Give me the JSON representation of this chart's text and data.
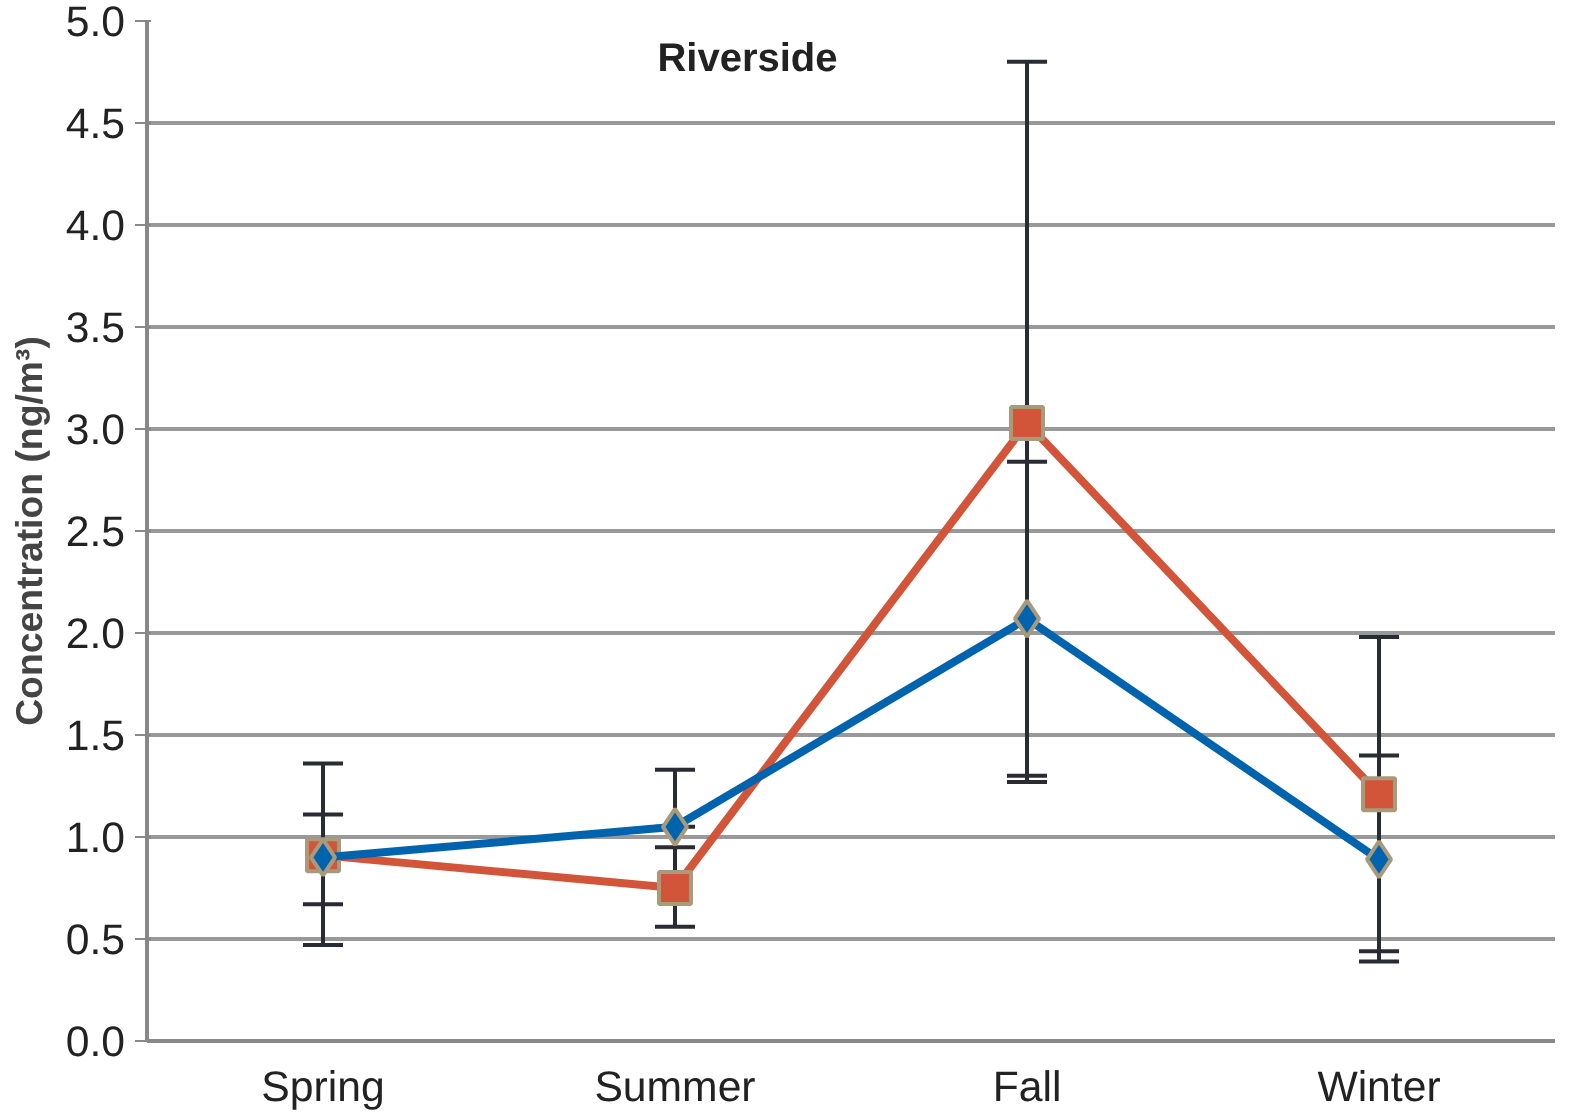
{
  "chart_data": {
    "type": "line",
    "title": "Riverside",
    "ylabel": "Concentration (ng/m³)",
    "categories": [
      "Spring",
      "Summer",
      "Fall",
      "Winter"
    ],
    "series": [
      {
        "color": "#d2553a",
        "marker": "square",
        "values": [
          0.91,
          0.75,
          3.03,
          1.21
        ],
        "errors": [
          [
            0.47,
            1.36
          ],
          [
            0.56,
            0.95
          ],
          [
            1.27,
            4.8
          ],
          [
            0.44,
            1.98
          ]
        ]
      },
      {
        "color": "#0063ad",
        "marker": "diamond",
        "values": [
          0.9,
          1.05,
          2.07,
          0.89
        ],
        "errors": [
          [
            0.67,
            1.11
          ],
          [
            1.05,
            1.33
          ],
          [
            1.3,
            2.84
          ],
          [
            0.39,
            1.4
          ]
        ]
      }
    ],
    "ylim": [
      0,
      5
    ],
    "yticks": [
      {
        "value": 0,
        "label": "0.0"
      },
      {
        "value": 0.5,
        "label": "0.5"
      },
      {
        "value": 1,
        "label": "1.0"
      },
      {
        "value": 1.5,
        "label": "1.5"
      },
      {
        "value": 2,
        "label": "2.0"
      },
      {
        "value": 2.5,
        "label": "2.5"
      },
      {
        "value": 3,
        "label": "3.0"
      },
      {
        "value": 3.5,
        "label": "3.5"
      },
      {
        "value": 4,
        "label": "4.0"
      },
      {
        "value": 4.5,
        "label": "4.5"
      },
      {
        "value": 5,
        "label": "5.0"
      }
    ],
    "grid": "y",
    "line_style": "solid"
  }
}
